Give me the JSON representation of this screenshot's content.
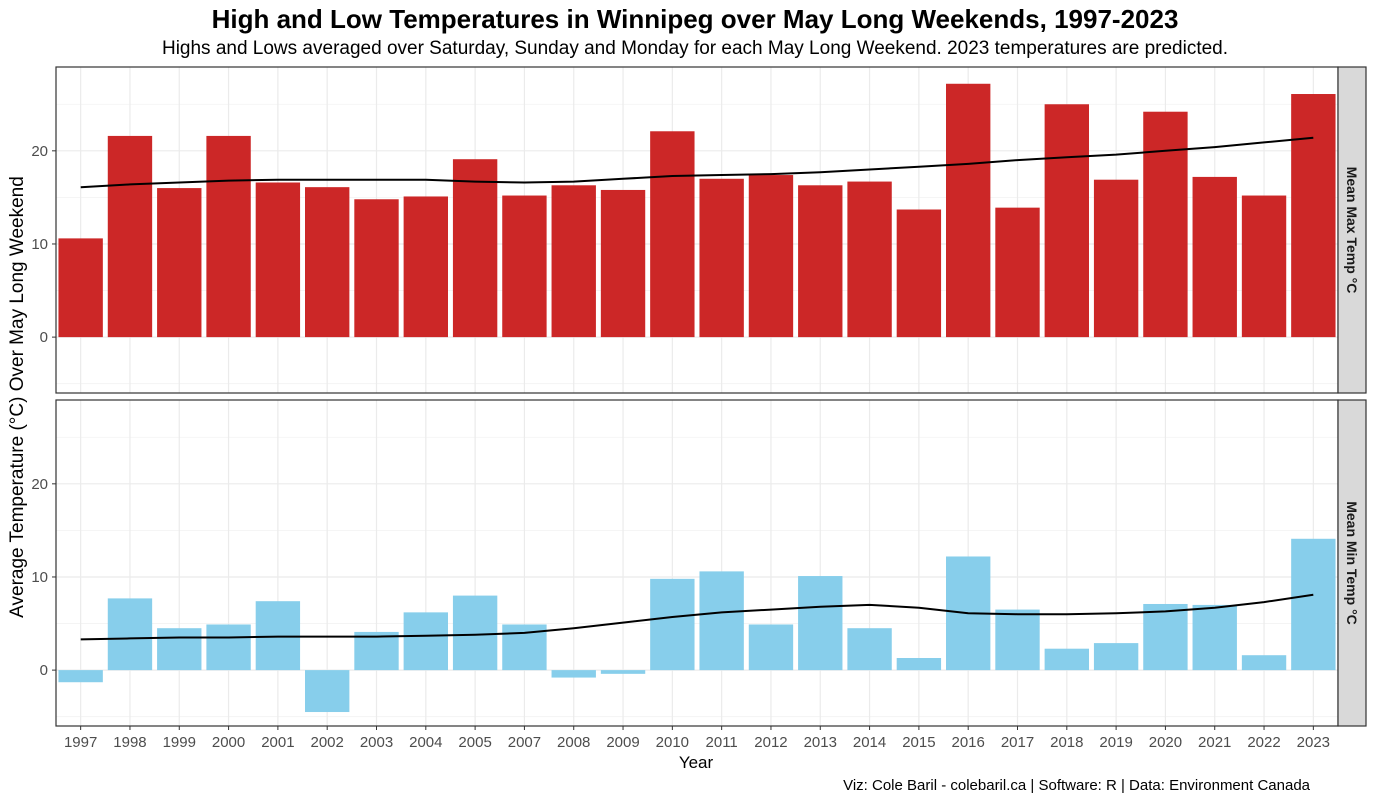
{
  "title": "High and Low Temperatures in Winnipeg over May Long Weekends, 1997-2023",
  "subtitle": "Highs and Lows averaged over Saturday, Sunday and Monday for each May Long Weekend. 2023 temperatures are predicted.",
  "caption": "Viz: Cole Baril - colebaril.ca | Software: R | Data: Environment Canada",
  "chart_data": {
    "type": "bar",
    "xlabel": "Year",
    "ylabel": "Average Temperature (°C) Over May Long Weekend",
    "categories": [
      "1997",
      "1998",
      "1999",
      "2000",
      "2001",
      "2002",
      "2003",
      "2004",
      "2005",
      "2007",
      "2008",
      "2009",
      "2010",
      "2011",
      "2012",
      "2013",
      "2014",
      "2015",
      "2016",
      "2017",
      "2018",
      "2019",
      "2020",
      "2021",
      "2022",
      "2023"
    ],
    "ylim": [
      -6,
      29
    ],
    "yticks": [
      0,
      10,
      20
    ],
    "grid": true,
    "facets": [
      {
        "label": "Mean Max Temp °C",
        "color": "#CC2727",
        "values": [
          10.6,
          21.6,
          16.0,
          21.6,
          16.6,
          16.1,
          14.8,
          15.1,
          19.1,
          15.2,
          16.3,
          15.8,
          22.1,
          17.0,
          17.4,
          16.3,
          16.7,
          13.7,
          27.2,
          13.9,
          25.0,
          16.9,
          24.2,
          17.2,
          15.2,
          26.1
        ],
        "trend": [
          16.1,
          16.4,
          16.6,
          16.8,
          16.9,
          16.9,
          16.9,
          16.9,
          16.7,
          16.6,
          16.7,
          17.0,
          17.3,
          17.4,
          17.5,
          17.7,
          18.0,
          18.3,
          18.6,
          19.0,
          19.3,
          19.6,
          20.0,
          20.4,
          20.9,
          21.4
        ]
      },
      {
        "label": "Mean Min Temp °C",
        "color": "#87CEEB",
        "values": [
          -1.3,
          7.7,
          4.5,
          4.9,
          7.4,
          -4.5,
          4.1,
          6.2,
          8.0,
          4.9,
          -0.8,
          -0.4,
          9.8,
          10.6,
          4.9,
          10.1,
          4.5,
          1.3,
          12.2,
          6.5,
          2.3,
          2.9,
          7.1,
          7.0,
          1.6,
          14.1
        ],
        "trend": [
          3.3,
          3.4,
          3.5,
          3.5,
          3.6,
          3.6,
          3.6,
          3.7,
          3.8,
          4.0,
          4.5,
          5.1,
          5.7,
          6.2,
          6.5,
          6.8,
          7.0,
          6.7,
          6.1,
          6.0,
          6.0,
          6.1,
          6.3,
          6.7,
          7.3,
          8.1
        ]
      }
    ]
  }
}
